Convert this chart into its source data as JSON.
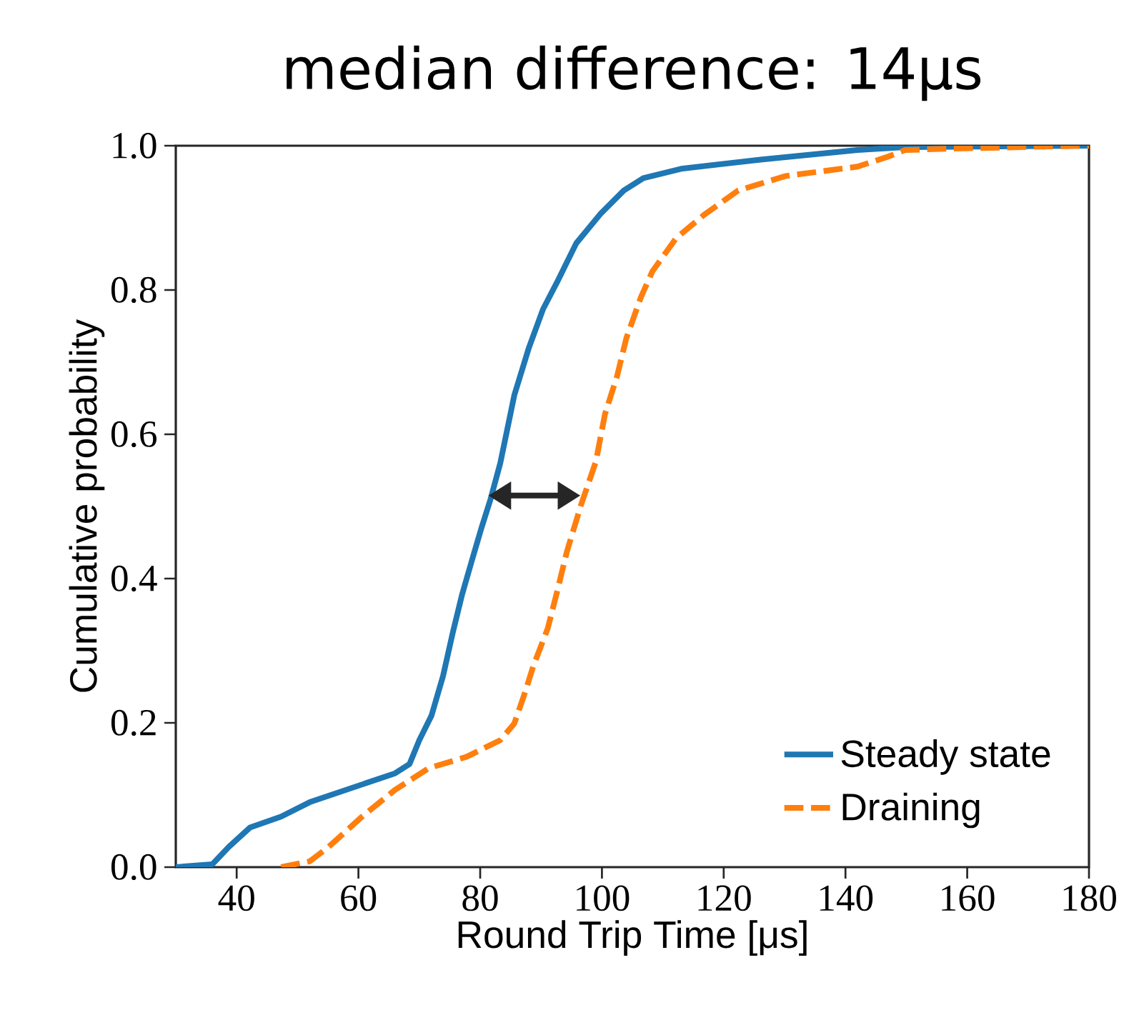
{
  "chart_data": {
    "type": "line",
    "title": "median difference: 14μs",
    "xlabel": "Round Trip Time [μs]",
    "ylabel": "Cumulative probability",
    "xlim": [
      30,
      180
    ],
    "ylim": [
      0,
      1.0
    ],
    "xticks": [
      40,
      60,
      80,
      100,
      120,
      140,
      160,
      180
    ],
    "yticks": [
      {
        "value": 0,
        "label": "0.0"
      },
      {
        "value": 0.2,
        "label": "0.2"
      },
      {
        "value": 0.4,
        "label": "0.4"
      },
      {
        "value": 0.6,
        "label": "0.6"
      },
      {
        "value": 0.8,
        "label": "0.8"
      },
      {
        "value": 1.0,
        "label": "1.0"
      }
    ],
    "grid": false,
    "legend": "bottom right",
    "series": [
      {
        "name": "Steady state",
        "color": "#1f77b4",
        "line_style": "solid",
        "x": [
          30,
          36,
          38.7,
          42.2,
          47.3,
          52,
          59,
          66,
          68.4,
          70,
          72,
          73.9,
          75.5,
          77,
          78.6,
          80.2,
          81.7,
          83.3,
          85.6,
          88,
          90.3,
          92.7,
          95.8,
          99.7,
          103.6,
          106.8,
          113,
          126.3,
          142,
          149.7,
          180
        ],
        "values": [
          0,
          0.004,
          0.028,
          0.055,
          0.07,
          0.09,
          0.11,
          0.13,
          0.143,
          0.176,
          0.21,
          0.265,
          0.325,
          0.377,
          0.424,
          0.47,
          0.51,
          0.56,
          0.654,
          0.72,
          0.773,
          0.812,
          0.865,
          0.905,
          0.938,
          0.955,
          0.968,
          0.981,
          0.994,
          0.998,
          1.0
        ]
      },
      {
        "name": "Draining",
        "color": "#ff7f0e",
        "line_style": "dashed",
        "x": [
          47.3,
          52,
          55.1,
          60.6,
          66,
          71.5,
          77.8,
          83.3,
          85.6,
          87.2,
          88.7,
          91.1,
          92.7,
          94.2,
          96.6,
          99,
          100.5,
          102.5,
          104,
          106.4,
          108.3,
          112.2,
          116.9,
          122.4,
          130.2,
          142,
          146.7,
          149.8,
          157.6,
          180
        ],
        "values": [
          0,
          0.008,
          0.028,
          0.07,
          0.107,
          0.137,
          0.153,
          0.176,
          0.199,
          0.238,
          0.278,
          0.331,
          0.384,
          0.436,
          0.503,
          0.562,
          0.628,
          0.681,
          0.733,
          0.79,
          0.826,
          0.872,
          0.905,
          0.938,
          0.958,
          0.971,
          0.984,
          0.994,
          0.996,
          1.0
        ]
      }
    ]
  }
}
